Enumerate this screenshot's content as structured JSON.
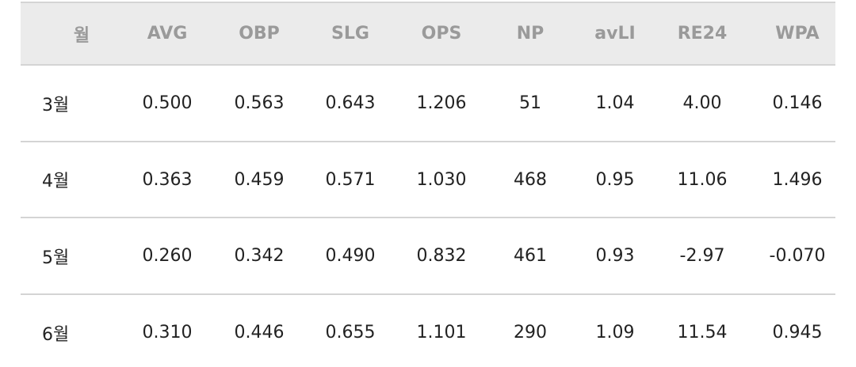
{
  "table": {
    "header": [
      "월",
      "AVG",
      "OBP",
      "SLG",
      "OPS",
      "NP",
      "avLI",
      "RE24",
      "WPA"
    ],
    "rows": [
      [
        "3월",
        "0.500",
        "0.563",
        "0.643",
        "1.206",
        "51",
        "1.04",
        "4.00",
        "0.146"
      ],
      [
        "4월",
        "0.363",
        "0.459",
        "0.571",
        "1.030",
        "468",
        "0.95",
        "11.06",
        "1.496"
      ],
      [
        "5월",
        "0.260",
        "0.342",
        "0.490",
        "0.832",
        "461",
        "0.93",
        "-2.97",
        "-0.070"
      ],
      [
        "6월",
        "0.310",
        "0.446",
        "0.655",
        "1.101",
        "290",
        "1.09",
        "11.54",
        "0.945"
      ]
    ]
  }
}
